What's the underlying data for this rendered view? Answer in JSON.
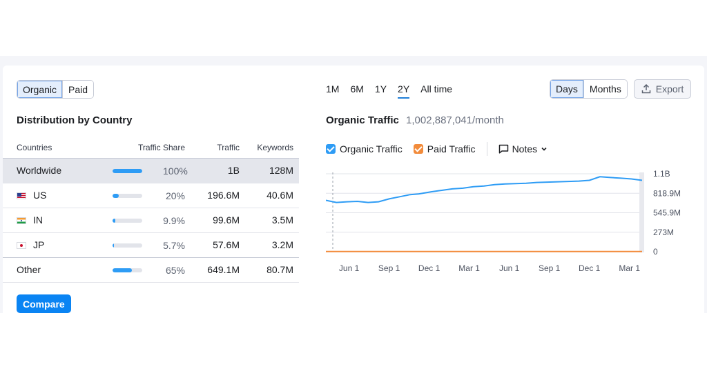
{
  "left": {
    "toggle": [
      {
        "label": "Organic",
        "active": true
      },
      {
        "label": "Paid",
        "active": false
      }
    ],
    "title": "Distribution by Country",
    "columns": [
      "Countries",
      "Traffic Share",
      "Traffic",
      "Keywords"
    ],
    "rows": [
      {
        "country": "Worldwide",
        "flag": "",
        "share": "100%",
        "share_fraction": 1.0,
        "traffic": "1B",
        "keywords": "128M",
        "linked": false
      },
      {
        "country": "US",
        "flag": "us",
        "share": "20%",
        "share_fraction": 0.2,
        "traffic": "196.6M",
        "keywords": "40.6M",
        "linked": true
      },
      {
        "country": "IN",
        "flag": "in",
        "share": "9.9%",
        "share_fraction": 0.099,
        "traffic": "99.6M",
        "keywords": "3.5M",
        "linked": true
      },
      {
        "country": "JP",
        "flag": "jp",
        "share": "5.7%",
        "share_fraction": 0.057,
        "traffic": "57.6M",
        "keywords": "3.2M",
        "linked": true
      },
      {
        "country": "Other",
        "flag": "",
        "share": "65%",
        "share_fraction": 0.65,
        "traffic": "649.1M",
        "keywords": "80.7M",
        "linked": false
      }
    ],
    "compare_label": "Compare"
  },
  "right": {
    "periods": [
      {
        "label": "1M",
        "active": false
      },
      {
        "label": "6M",
        "active": false
      },
      {
        "label": "1Y",
        "active": false
      },
      {
        "label": "2Y",
        "active": true
      },
      {
        "label": "All time",
        "active": false
      }
    ],
    "granularity": [
      {
        "label": "Days",
        "active": true
      },
      {
        "label": "Months",
        "active": false
      }
    ],
    "export_label": "Export",
    "traffic_title": "Organic Traffic",
    "traffic_value": "1,002,887,041/month",
    "legend": {
      "organic": {
        "label": "Organic Traffic",
        "color": "#2e9cf5",
        "checked": true
      },
      "paid": {
        "label": "Paid Traffic",
        "color": "#f28b3b",
        "checked": true
      },
      "notes_label": "Notes"
    }
  },
  "chart_data": {
    "type": "line",
    "title": "",
    "xlabel": "",
    "ylabel": "",
    "x_ticks": [
      "Jun 1",
      "Sep 1",
      "Dec 1",
      "Mar 1",
      "Jun 1",
      "Sep 1",
      "Dec 1",
      "Mar 1"
    ],
    "y_ticks": [
      "1.1B",
      "818.9M",
      "545.9M",
      "273M",
      "0"
    ],
    "y_tick_values": [
      1092000000,
      818900000,
      545900000,
      273000000,
      0
    ],
    "ylim": [
      0,
      1092000000
    ],
    "grid": true,
    "series": [
      {
        "name": "Organic Traffic",
        "color": "#2e9cf5",
        "x": [
          0,
          0.25,
          0.5,
          0.75,
          1,
          1.25,
          1.5,
          1.75,
          2,
          2.2,
          2.5,
          2.75,
          3,
          3.25,
          3.5,
          3.75,
          4,
          4.25,
          4.5,
          4.75,
          5,
          5.25,
          5.5,
          5.75,
          6,
          6.25,
          6.5,
          6.75,
          7,
          7.25,
          7.5
        ],
        "values": [
          720000000,
          690000000,
          700000000,
          705000000,
          690000000,
          700000000,
          740000000,
          770000000,
          800000000,
          810000000,
          840000000,
          860000000,
          880000000,
          890000000,
          910000000,
          920000000,
          940000000,
          950000000,
          955000000,
          960000000,
          970000000,
          975000000,
          980000000,
          985000000,
          990000000,
          1000000000,
          1050000000,
          1040000000,
          1030000000,
          1020000000,
          1000000000
        ]
      },
      {
        "name": "Paid Traffic",
        "color": "#f28b3b",
        "x": [
          0,
          7.5
        ],
        "values": [
          2000000,
          2000000
        ]
      }
    ]
  }
}
